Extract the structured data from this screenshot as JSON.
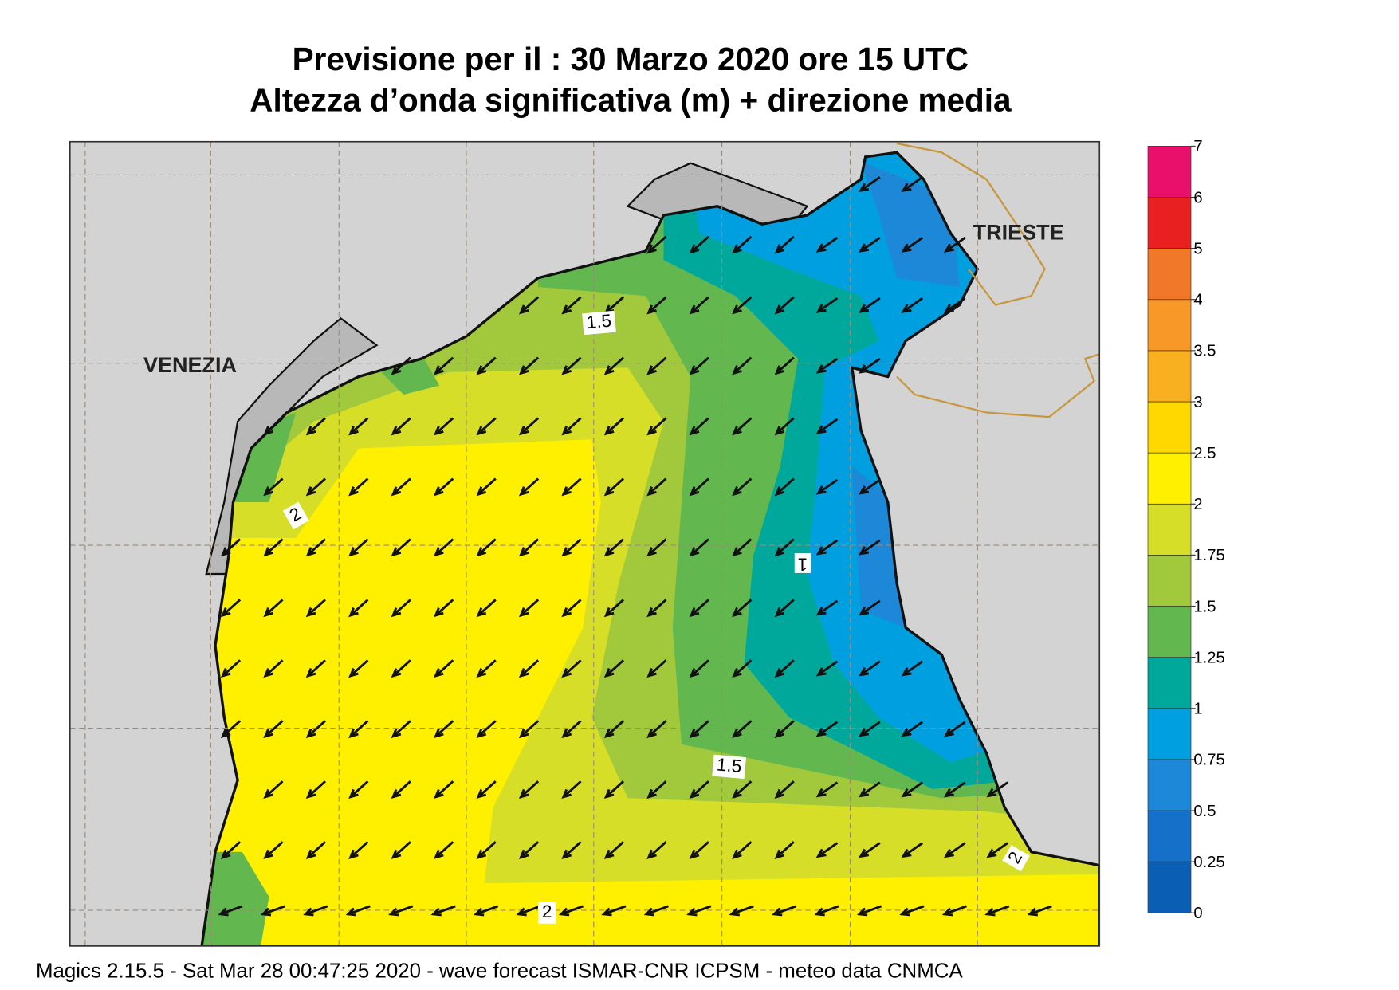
{
  "header": {
    "title": [
      "Previsione per il  :  30   Marzo   2020   ore 15 UTC",
      "Altezza d’onda significativa (m) + direzione media"
    ]
  },
  "places": [
    "VENEZIA",
    "TRIESTE"
  ],
  "contour_labels": [
    "1.5",
    "2",
    "1",
    "1.5",
    "2",
    "2"
  ],
  "colorbar": {
    "levels": [
      0,
      0.25,
      0.5,
      0.75,
      1,
      1.25,
      1.5,
      1.75,
      2,
      2.5,
      3,
      3.5,
      4,
      5,
      6,
      7
    ],
    "colors": [
      "#0a5fb4",
      "#1470c8",
      "#1e88d8",
      "#009fe0",
      "#00a89c",
      "#62b84e",
      "#a2c83c",
      "#d6de28",
      "#fff000",
      "#ffd800",
      "#f8b020",
      "#f89828",
      "#f07828",
      "#e82020",
      "#e8106a"
    ]
  },
  "footer": "Magics 2.15.5 - Sat Mar 28 00:47:25 2020 - wave forecast  ISMAR-CNR  ICPSM - meteo data   CNMCA"
}
